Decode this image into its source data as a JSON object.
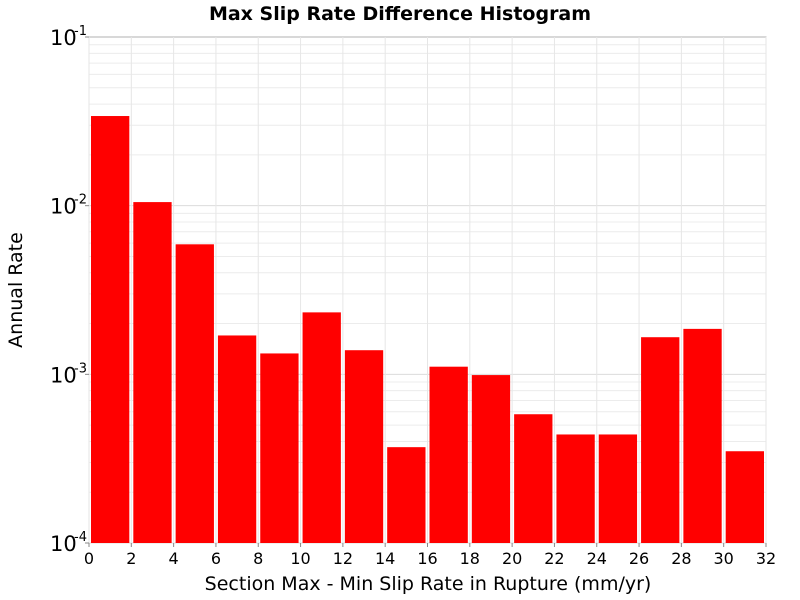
{
  "chart_data": {
    "type": "bar",
    "title": "Max Slip Rate Difference Histogram",
    "xlabel": "Section Max - Min Slip Rate in Rupture (mm/yr)",
    "ylabel": "Annual Rate",
    "yscale": "log",
    "xlim": [
      0,
      32
    ],
    "ylim": [
      0.0001,
      0.1
    ],
    "grid": true,
    "legend": "none",
    "bar_color": "#ff0000",
    "bin_width": 2,
    "x_ticks": [
      "0",
      "2",
      "4",
      "6",
      "8",
      "10",
      "12",
      "14",
      "16",
      "18",
      "20",
      "22",
      "24",
      "26",
      "28",
      "30",
      "32"
    ],
    "y_ticks": [
      {
        "base": "10",
        "exp": "-1"
      },
      {
        "base": "10",
        "exp": "-2"
      },
      {
        "base": "10",
        "exp": "-3"
      },
      {
        "base": "10",
        "exp": "-4"
      }
    ],
    "bins": [
      {
        "x_start": 0,
        "x_end": 2,
        "value": 0.034
      },
      {
        "x_start": 2,
        "x_end": 4,
        "value": 0.0105
      },
      {
        "x_start": 4,
        "x_end": 6,
        "value": 0.0059
      },
      {
        "x_start": 6,
        "x_end": 8,
        "value": 0.0017
      },
      {
        "x_start": 8,
        "x_end": 10,
        "value": 0.00133
      },
      {
        "x_start": 10,
        "x_end": 12,
        "value": 0.00233
      },
      {
        "x_start": 12,
        "x_end": 14,
        "value": 0.00139
      },
      {
        "x_start": 14,
        "x_end": 16,
        "value": 0.00037
      },
      {
        "x_start": 16,
        "x_end": 18,
        "value": 0.00111
      },
      {
        "x_start": 18,
        "x_end": 20,
        "value": 0.00099
      },
      {
        "x_start": 20,
        "x_end": 22,
        "value": 0.00058
      },
      {
        "x_start": 22,
        "x_end": 24,
        "value": 0.00044
      },
      {
        "x_start": 24,
        "x_end": 26,
        "value": 0.00044
      },
      {
        "x_start": 26,
        "x_end": 28,
        "value": 0.00166
      },
      {
        "x_start": 28,
        "x_end": 30,
        "value": 0.00186
      },
      {
        "x_start": 30,
        "x_end": 32,
        "value": 0.00035
      }
    ]
  }
}
